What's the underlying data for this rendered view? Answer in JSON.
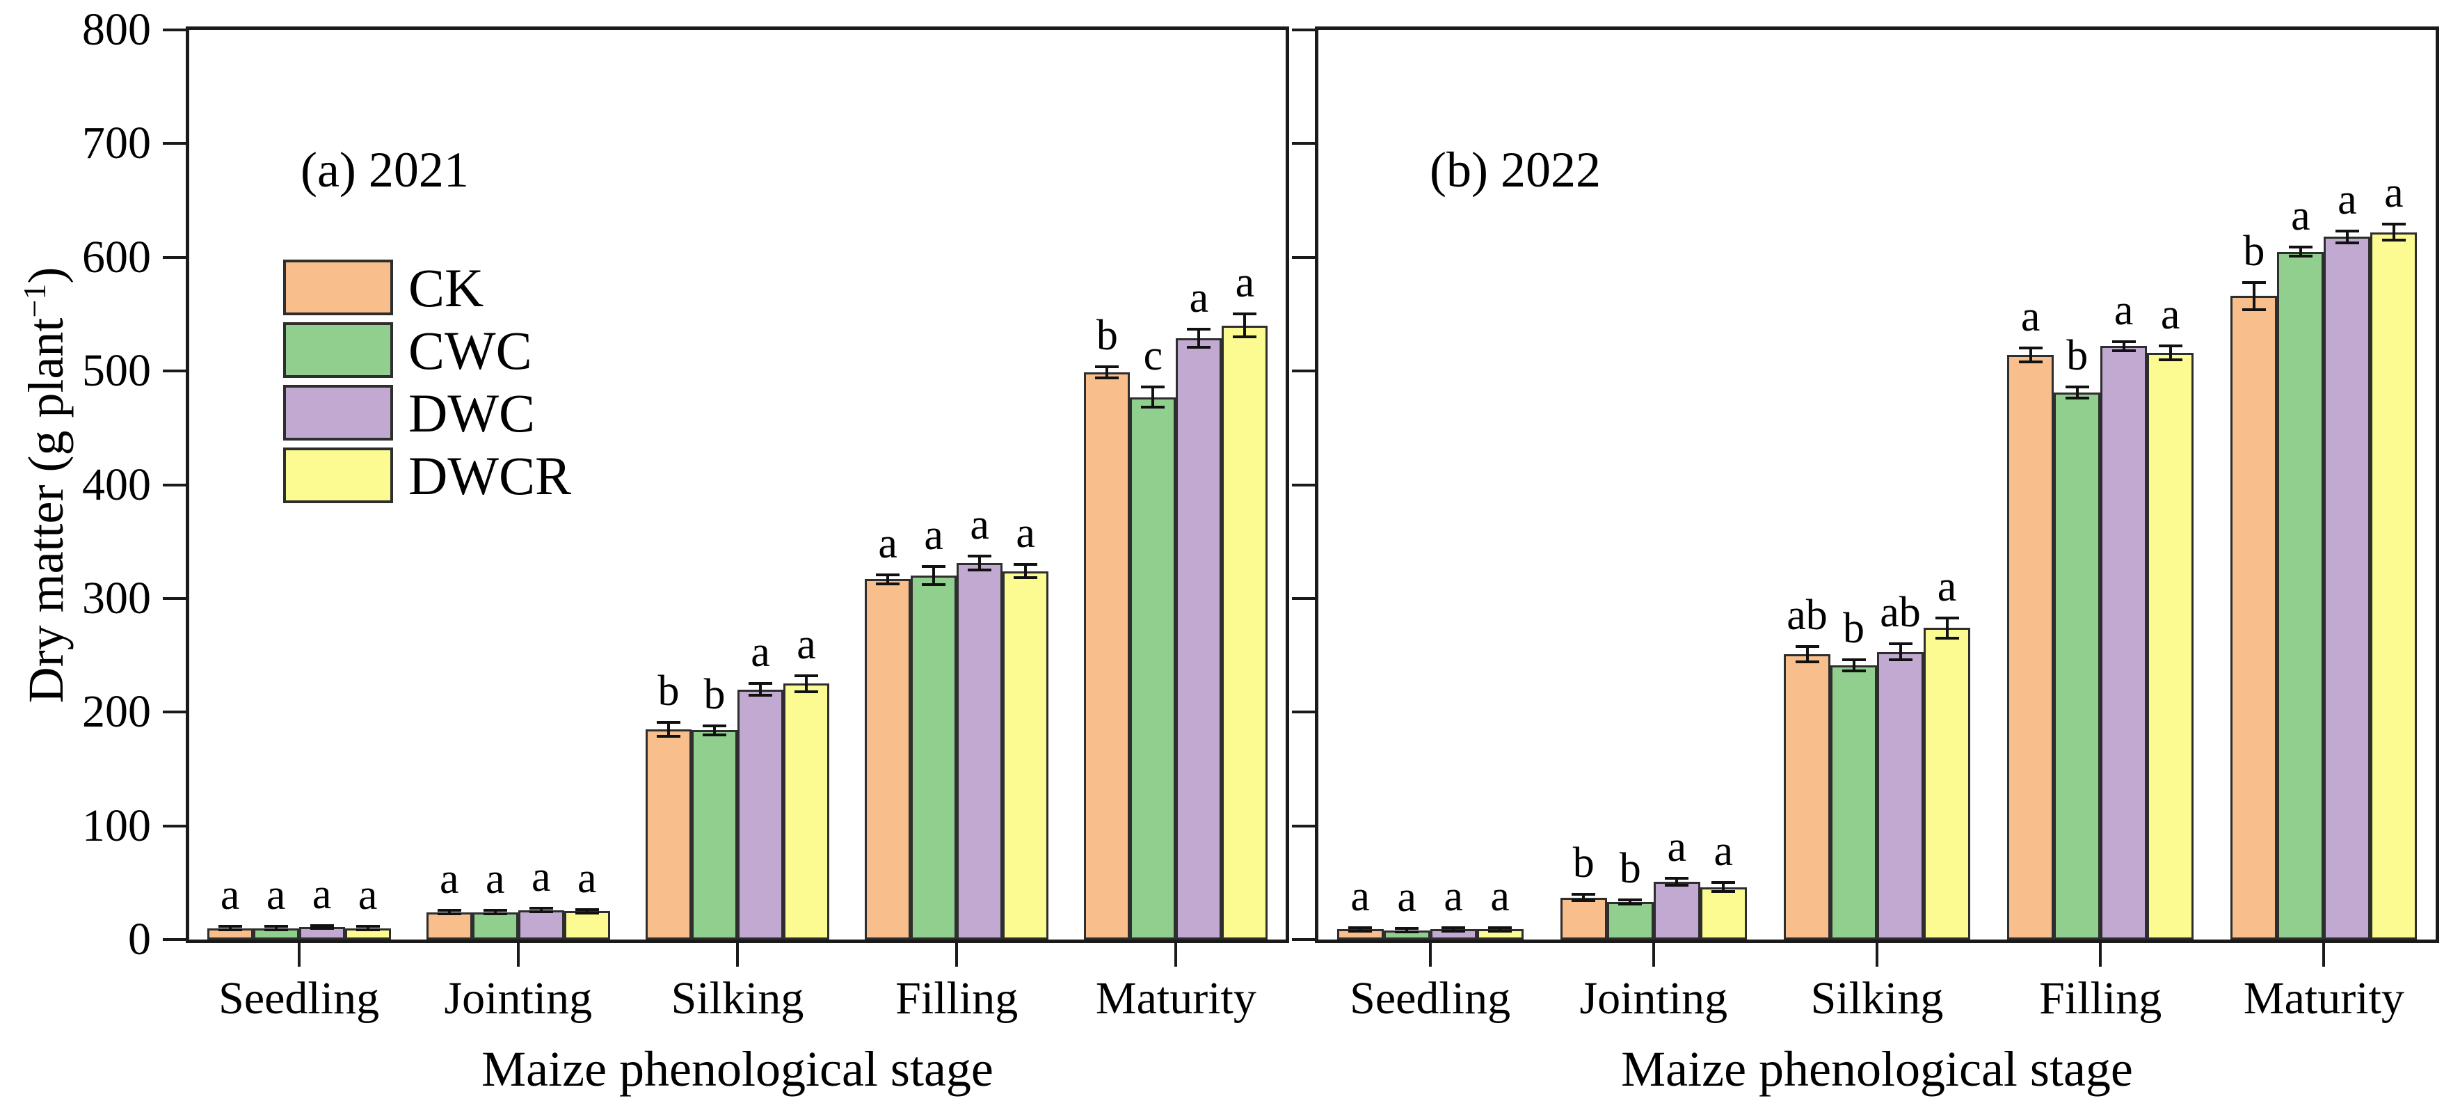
{
  "figure": {
    "xlabel": "Maize phenological stage",
    "ylabel_prefix": "Dry matter (g plant",
    "ylabel_sup": "−1",
    "ylabel_suffix": ")",
    "background": "#ffffff",
    "axis_color": "#1a1a1a"
  },
  "axis": {
    "ylim": [
      0,
      800
    ],
    "ytick_step": 100,
    "ytick_labels": [
      "0",
      "100",
      "200",
      "300",
      "400",
      "500",
      "600",
      "700",
      "800"
    ],
    "grid": "off"
  },
  "legend": {
    "position": "upper-left-panel-a",
    "items": [
      {
        "label": "CK",
        "color": "#F8BE8B"
      },
      {
        "label": "CWC",
        "color": "#90CF8E"
      },
      {
        "label": "DWC",
        "color": "#C1A9D2"
      },
      {
        "label": "DWCR",
        "color": "#FBFB91"
      }
    ]
  },
  "chart_data": [
    {
      "type": "bar",
      "panel_label": "(a) 2021",
      "show_ytick_labels": true,
      "categories": [
        "Seedling",
        "Jointing",
        "Silking",
        "Filling",
        "Maturity"
      ],
      "xlabel": "Maize phenological stage",
      "ylabel": "Dry matter (g plant-1)",
      "ylim": [
        0,
        800
      ],
      "series": [
        {
          "name": "CK",
          "color": "#F8BE8B",
          "values": [
            10,
            24,
            185,
            317,
            499
          ],
          "errors": [
            1.5,
            1.5,
            6,
            4,
            5
          ],
          "letters": [
            "a",
            "a",
            "b",
            "a",
            "b"
          ]
        },
        {
          "name": "CWC",
          "color": "#90CF8E",
          "values": [
            10,
            24,
            184,
            320,
            477
          ],
          "errors": [
            1.5,
            1.5,
            4,
            8,
            9
          ],
          "letters": [
            "a",
            "a",
            "b",
            "a",
            "c"
          ]
        },
        {
          "name": "DWC",
          "color": "#C1A9D2",
          "values": [
            11,
            26,
            220,
            331,
            529
          ],
          "errors": [
            1.5,
            1.5,
            5,
            6,
            8
          ],
          "letters": [
            "a",
            "a",
            "a",
            "a",
            "a"
          ]
        },
        {
          "name": "DWCR",
          "color": "#FBFB91",
          "values": [
            10,
            25,
            225,
            324,
            540
          ],
          "errors": [
            1.5,
            1.5,
            7,
            6,
            10
          ],
          "letters": [
            "a",
            "a",
            "a",
            "a",
            "a"
          ]
        }
      ]
    },
    {
      "type": "bar",
      "panel_label": "(b) 2022",
      "show_ytick_labels": false,
      "categories": [
        "Seedling",
        "Jointing",
        "Silking",
        "Filling",
        "Maturity"
      ],
      "xlabel": "Maize phenological stage",
      "ylabel": "Dry matter (g plant-1)",
      "ylim": [
        0,
        800
      ],
      "series": [
        {
          "name": "CK",
          "color": "#F8BE8B",
          "values": [
            9,
            37,
            251,
            514,
            566
          ],
          "errors": [
            1.5,
            3,
            7,
            6,
            12
          ],
          "letters": [
            "a",
            "b",
            "ab",
            "a",
            "b"
          ]
        },
        {
          "name": "CWC",
          "color": "#90CF8E",
          "values": [
            8,
            33,
            241,
            481,
            605
          ],
          "errors": [
            1.5,
            2,
            5,
            5,
            4
          ],
          "letters": [
            "a",
            "b",
            "b",
            "b",
            "a"
          ]
        },
        {
          "name": "DWC",
          "color": "#C1A9D2",
          "values": [
            9,
            51,
            253,
            522,
            618
          ],
          "errors": [
            1.5,
            3,
            7,
            4,
            5
          ],
          "letters": [
            "a",
            "a",
            "ab",
            "a",
            "a"
          ]
        },
        {
          "name": "DWCR",
          "color": "#FBFB91",
          "values": [
            9,
            46,
            274,
            516,
            622
          ],
          "errors": [
            1.5,
            4,
            9,
            6,
            7
          ],
          "letters": [
            "a",
            "a",
            "a",
            "a",
            "a"
          ]
        }
      ]
    }
  ]
}
